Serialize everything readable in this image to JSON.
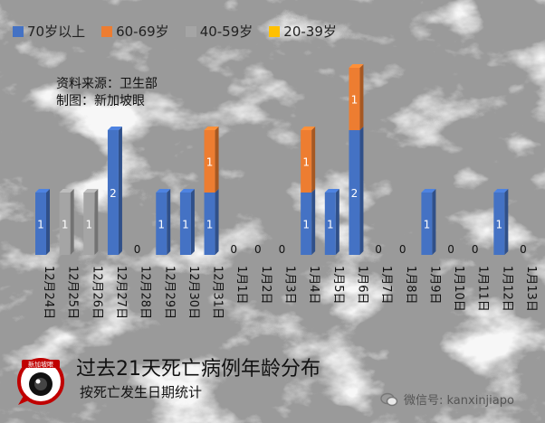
{
  "colors": {
    "70+": "#4472c4",
    "60-69": "#ed7d31",
    "40-59": "#a5a5a5",
    "20-39": "#ffc000"
  },
  "legend": [
    {
      "label": "70岁以上",
      "color": "#4472c4"
    },
    {
      "label": "60-69岁",
      "color": "#ed7d31"
    },
    {
      "label": "40-59岁",
      "color": "#a5a5a5"
    },
    {
      "label": "20-39岁",
      "color": "#ffc000"
    }
  ],
  "source": {
    "line1": "资料来源：卫生部",
    "line2": "制图：新加坡眼"
  },
  "footer": {
    "title": "过去21天死亡病例年龄分布",
    "subtitle": "按死亡发生日期统计",
    "logo_text": "新加坡眼",
    "watermark": "微信号: kanxinjiapo"
  },
  "chart_data": {
    "type": "bar",
    "stacked": true,
    "ylim": [
      0,
      3
    ],
    "categories": [
      "12月24日",
      "12月25日",
      "12月26日",
      "12月27日",
      "12月28日",
      "12月29日",
      "12月30日",
      "12月31日",
      "1月1日",
      "1月2日",
      "1月3日",
      "1月4日",
      "1月5日",
      "1月6日",
      "1月7日",
      "1月8日",
      "1月9日",
      "1月10日",
      "1月11日",
      "1月12日",
      "1月13日"
    ],
    "series": [
      {
        "name": "70岁以上",
        "values": [
          1,
          0,
          0,
          2,
          0,
          1,
          1,
          1,
          0,
          0,
          0,
          1,
          1,
          2,
          0,
          0,
          1,
          0,
          0,
          1,
          0
        ]
      },
      {
        "name": "60-69岁",
        "values": [
          0,
          0,
          0,
          0,
          0,
          0,
          0,
          1,
          0,
          0,
          0,
          1,
          0,
          1,
          0,
          0,
          0,
          0,
          0,
          0,
          0
        ]
      },
      {
        "name": "40-59岁",
        "values": [
          0,
          1,
          1,
          0,
          0,
          0,
          0,
          0,
          0,
          0,
          0,
          0,
          0,
          0,
          0,
          0,
          0,
          0,
          0,
          0,
          0
        ]
      },
      {
        "name": "20-39岁",
        "values": [
          0,
          0,
          0,
          0,
          0,
          0,
          0,
          0,
          0,
          0,
          0,
          0,
          0,
          0,
          0,
          0,
          0,
          0,
          0,
          0,
          0
        ]
      }
    ],
    "zero_labels": [
      "0"
    ]
  }
}
